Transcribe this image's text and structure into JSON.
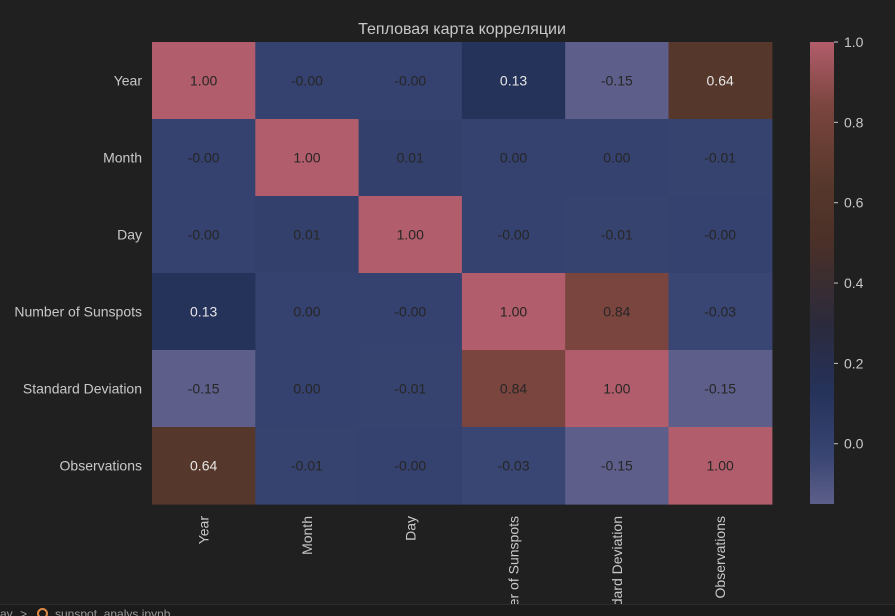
{
  "chart_data": {
    "type": "heatmap",
    "title": "Тепловая карта корреляции",
    "row_labels": [
      "Year",
      "Month",
      "Day",
      "Number of Sunspots",
      "Standard Deviation",
      "Observations"
    ],
    "col_labels": [
      "Year",
      "Month",
      "Day",
      "Number of Sunspots",
      "Standard Deviation",
      "Observations"
    ],
    "values": [
      [
        1.0,
        -0.0,
        -0.0,
        0.13,
        -0.15,
        0.64
      ],
      [
        -0.0,
        1.0,
        0.01,
        0.0,
        0.0,
        -0.01
      ],
      [
        -0.0,
        0.01,
        1.0,
        -0.0,
        -0.01,
        -0.0
      ],
      [
        0.13,
        0.0,
        -0.0,
        1.0,
        0.84,
        -0.03
      ],
      [
        -0.15,
        0.0,
        -0.01,
        0.84,
        1.0,
        -0.15
      ],
      [
        0.64,
        -0.01,
        -0.0,
        -0.03,
        -0.15,
        1.0
      ]
    ],
    "cell_text": [
      [
        "1.00",
        "-0.00",
        "-0.00",
        "0.13",
        "-0.15",
        "0.64"
      ],
      [
        "-0.00",
        "1.00",
        "0.01",
        "0.00",
        "0.00",
        "-0.01"
      ],
      [
        "-0.00",
        "0.01",
        "1.00",
        "-0.00",
        "-0.01",
        "-0.00"
      ],
      [
        "0.13",
        "0.00",
        "-0.00",
        "1.00",
        "0.84",
        "-0.03"
      ],
      [
        "-0.15",
        "0.00",
        "-0.01",
        "0.84",
        "1.00",
        "-0.15"
      ],
      [
        "0.64",
        "-0.01",
        "-0.00",
        "-0.03",
        "-0.15",
        "1.00"
      ]
    ],
    "value_range": [
      -0.15,
      1.0
    ],
    "colorbar": {
      "ticks": [
        0.0,
        0.2,
        0.4,
        0.6,
        0.8,
        1.0
      ],
      "tick_labels": [
        "0.0",
        "0.2",
        "0.4",
        "0.6",
        "0.8",
        "1.0"
      ]
    },
    "colormap_stops": [
      {
        "value": -0.15,
        "color": "#5d5f8a"
      },
      {
        "value": -0.03,
        "color": "#394572"
      },
      {
        "value": 0.13,
        "color": "#25325a"
      },
      {
        "value": 0.3,
        "color": "#2b2a3c"
      },
      {
        "value": 0.5,
        "color": "#4a3028"
      },
      {
        "value": 0.64,
        "color": "#56372b"
      },
      {
        "value": 0.84,
        "color": "#7a453e"
      },
      {
        "value": 1.0,
        "color": "#b25d6b"
      }
    ],
    "label_colors": {
      "dark_text": "#262626",
      "light_text": "#e6e6e6"
    },
    "grid": false,
    "legend": "colorbar-right"
  },
  "status_bar": {
    "crumb_left": "ay",
    "separator": ">",
    "notebook_name": "sunspot_analys.ipynb"
  }
}
